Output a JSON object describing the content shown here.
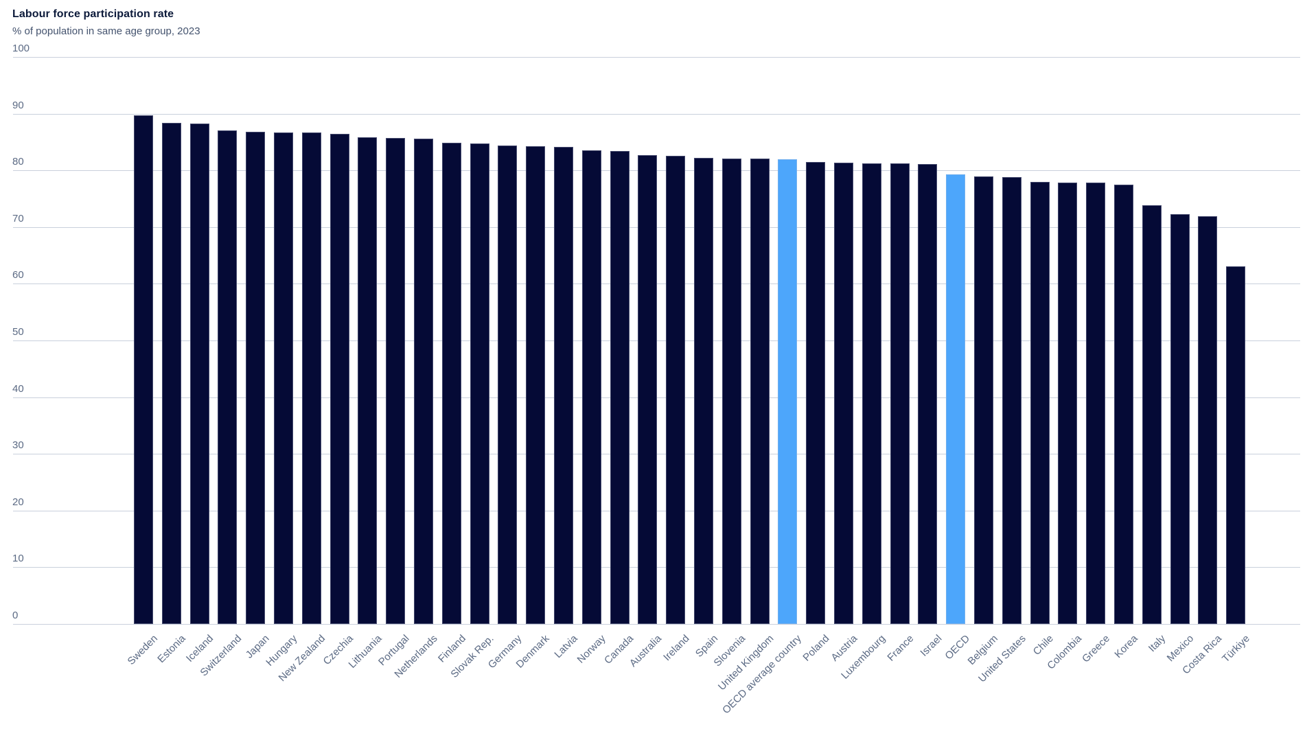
{
  "chart_data": {
    "type": "bar",
    "title": "Labour force participation rate",
    "subtitle": "% of population in same age group, 2023",
    "xlabel": "",
    "ylabel": "% of population in same age group",
    "ylim": [
      0,
      100
    ],
    "yticks": [
      0,
      10,
      20,
      30,
      40,
      50,
      60,
      70,
      80,
      90,
      100
    ],
    "grid": true,
    "legend": false,
    "categories": [
      "Sweden",
      "Estonia",
      "Iceland",
      "Switzerland",
      "Japan",
      "Hungary",
      "New Zealand",
      "Czechia",
      "Lithuania",
      "Portugal",
      "Netherlands",
      "Finland",
      "Slovak Rep.",
      "Germany",
      "Denmark",
      "Latvia",
      "Norway",
      "Canada",
      "Australia",
      "Ireland",
      "Spain",
      "Slovenia",
      "United Kingdom",
      "OECD average country",
      "Poland",
      "Austria",
      "Luxembourg",
      "France",
      "Israel",
      "OECD",
      "Belgium",
      "United States",
      "Chile",
      "Colombia",
      "Greece",
      "Korea",
      "Italy",
      "Mexico",
      "Costa Rica",
      "Türkiye"
    ],
    "values": [
      89.7,
      88.4,
      88.2,
      87.1,
      86.8,
      86.7,
      86.7,
      86.5,
      85.8,
      85.7,
      85.6,
      84.9,
      84.8,
      84.4,
      84.3,
      84.1,
      83.5,
      83.4,
      82.7,
      82.6,
      82.2,
      82.1,
      82.1,
      82.0,
      81.5,
      81.3,
      81.2,
      81.2,
      81.1,
      79.3,
      78.9,
      78.8,
      78.0,
      77.8,
      77.8,
      77.5,
      73.9,
      72.3,
      71.9,
      63.1
    ],
    "highlighted_categories": [
      "OECD average country",
      "OECD"
    ],
    "colors": {
      "bar": "#050a36",
      "highlight": "#4da6fb",
      "gridline": "#c9d0dc",
      "title_text": "#0c1a3a",
      "subtitle_text": "#44536e",
      "axis_text": "#5b6a84",
      "background": "#ffffff"
    }
  }
}
